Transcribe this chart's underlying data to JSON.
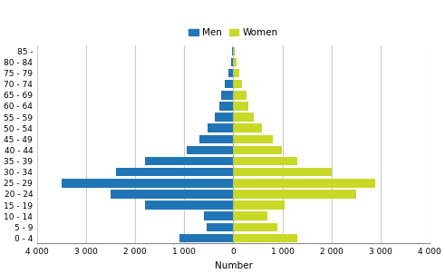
{
  "age_groups": [
    "0 - 4",
    "5 - 9",
    "10 - 14",
    "15 - 19",
    "20 - 24",
    "25 - 29",
    "30 - 34",
    "35 - 39",
    "40 - 44",
    "45 - 49",
    "50 - 54",
    "55 - 59",
    "60 - 64",
    "65 - 69",
    "70 - 74",
    "75 - 79",
    "80 - 84",
    "85 -"
  ],
  "men": [
    1100,
    550,
    600,
    1800,
    2500,
    3500,
    2400,
    1800,
    950,
    700,
    520,
    380,
    280,
    250,
    180,
    100,
    50,
    30
  ],
  "women": [
    1300,
    900,
    700,
    1050,
    2500,
    2900,
    2000,
    1300,
    980,
    800,
    580,
    420,
    300,
    270,
    180,
    120,
    60,
    30
  ],
  "men_color": "#2175b5",
  "women_color": "#c8d827",
  "xlim": 4000,
  "xlabel": "Number",
  "xticks": [
    -4000,
    -3000,
    -2000,
    -1000,
    0,
    1000,
    2000,
    3000,
    4000
  ],
  "xticklabels": [
    "4 000",
    "3 000",
    "2 000",
    "1 000",
    "0",
    "1 000",
    "2 000",
    "3 000",
    "4 000"
  ],
  "grid_color": "#cccccc",
  "background_color": "#ffffff",
  "legend_men": "Men",
  "legend_women": "Women"
}
